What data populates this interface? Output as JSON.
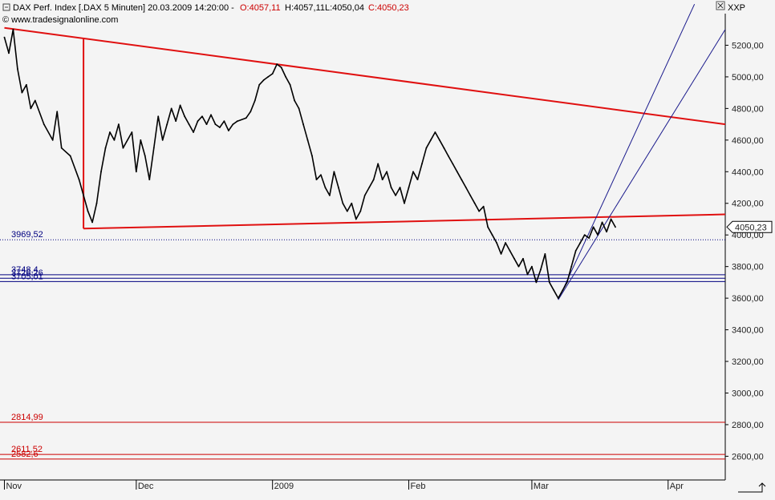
{
  "header": {
    "instrument": "DAX Perf. Index [.DAX  5 Minuten] 20.03.2009 14:20:00 - ",
    "open": "O:4057,11",
    "high": "H:4057,11",
    "low": "L:4050,04",
    "close": "C:4050,23",
    "copyright": "© www.tradesignalonline.com",
    "panel_label": "XXP"
  },
  "colors": {
    "background": "#f4f4f4",
    "price": "#000000",
    "trendline_red": "#e01010",
    "trendline_blue": "#1a1a8c",
    "level_red": "#cc0000",
    "level_blue": "#000080",
    "header_red": "#cc0000"
  },
  "chart_data": {
    "type": "line",
    "title": "DAX Perf. Index [.DAX  5 Minuten]",
    "ylim": [
      2450,
      5400
    ],
    "y_ticks": [
      {
        "value": 5200,
        "label": "5200,00"
      },
      {
        "value": 5000,
        "label": "5000,00"
      },
      {
        "value": 4800,
        "label": "4800,00"
      },
      {
        "value": 4600,
        "label": "4600,00"
      },
      {
        "value": 4400,
        "label": "4400,00"
      },
      {
        "value": 4200,
        "label": "4200,00"
      },
      {
        "value": 4000,
        "label": "4000,00"
      },
      {
        "value": 3800,
        "label": "3800,00"
      },
      {
        "value": 3600,
        "label": "3600,00"
      },
      {
        "value": 3400,
        "label": "3400,00"
      },
      {
        "value": 3200,
        "label": "3200,00"
      },
      {
        "value": 3000,
        "label": "3000,00"
      },
      {
        "value": 2800,
        "label": "2800,00"
      },
      {
        "value": 2600,
        "label": "2600,00"
      }
    ],
    "x_ticks": [
      {
        "date": "2008-11-01",
        "label": "Nov"
      },
      {
        "date": "2008-12-01",
        "label": "Dec"
      },
      {
        "date": "2009-01-01",
        "label": "2009"
      },
      {
        "date": "2009-02-01",
        "label": "Feb"
      },
      {
        "date": "2009-03-01",
        "label": "Mar"
      },
      {
        "date": "2009-04-01",
        "label": "Apr"
      }
    ],
    "xlim": [
      "2008-10-31",
      "2009-04-14"
    ],
    "last_price": {
      "value": 4050.23,
      "label": "4050,23"
    },
    "series": [
      {
        "points": [
          [
            "2008-11-01",
            5250
          ],
          [
            "2008-11-02",
            5150
          ],
          [
            "2008-11-03",
            5300
          ],
          [
            "2008-11-04",
            5050
          ],
          [
            "2008-11-05",
            4900
          ],
          [
            "2008-11-06",
            4950
          ],
          [
            "2008-11-07",
            4800
          ],
          [
            "2008-11-08",
            4850
          ],
          [
            "2008-11-10",
            4700
          ],
          [
            "2008-11-12",
            4600
          ],
          [
            "2008-11-13",
            4780
          ],
          [
            "2008-11-14",
            4550
          ],
          [
            "2008-11-16",
            4500
          ],
          [
            "2008-11-18",
            4350
          ],
          [
            "2008-11-19",
            4250
          ],
          [
            "2008-11-20",
            4150
          ],
          [
            "2008-11-21",
            4080
          ],
          [
            "2008-11-22",
            4200
          ],
          [
            "2008-11-23",
            4400
          ],
          [
            "2008-11-24",
            4550
          ],
          [
            "2008-11-25",
            4650
          ],
          [
            "2008-11-26",
            4600
          ],
          [
            "2008-11-27",
            4700
          ],
          [
            "2008-11-28",
            4550
          ],
          [
            "2008-11-30",
            4650
          ],
          [
            "2008-12-01",
            4400
          ],
          [
            "2008-12-02",
            4600
          ],
          [
            "2008-12-03",
            4500
          ],
          [
            "2008-12-04",
            4350
          ],
          [
            "2008-12-05",
            4550
          ],
          [
            "2008-12-06",
            4750
          ],
          [
            "2008-12-07",
            4600
          ],
          [
            "2008-12-08",
            4700
          ],
          [
            "2008-12-09",
            4800
          ],
          [
            "2008-12-10",
            4720
          ],
          [
            "2008-12-11",
            4820
          ],
          [
            "2008-12-12",
            4750
          ],
          [
            "2008-12-13",
            4700
          ],
          [
            "2008-12-14",
            4650
          ],
          [
            "2008-12-15",
            4720
          ],
          [
            "2008-12-16",
            4750
          ],
          [
            "2008-12-17",
            4700
          ],
          [
            "2008-12-18",
            4760
          ],
          [
            "2008-12-19",
            4700
          ],
          [
            "2008-12-20",
            4680
          ],
          [
            "2008-12-21",
            4720
          ],
          [
            "2008-12-22",
            4660
          ],
          [
            "2008-12-23",
            4700
          ],
          [
            "2008-12-24",
            4720
          ],
          [
            "2008-12-26",
            4740
          ],
          [
            "2008-12-27",
            4780
          ],
          [
            "2008-12-28",
            4850
          ],
          [
            "2008-12-29",
            4950
          ],
          [
            "2008-12-30",
            4980
          ],
          [
            "2008-12-31",
            5000
          ],
          [
            "2009-01-01",
            5020
          ],
          [
            "2009-01-02",
            5080
          ],
          [
            "2009-01-03",
            5060
          ],
          [
            "2009-01-04",
            5000
          ],
          [
            "2009-01-05",
            4950
          ],
          [
            "2009-01-06",
            4850
          ],
          [
            "2009-01-07",
            4800
          ],
          [
            "2009-01-08",
            4700
          ],
          [
            "2009-01-09",
            4600
          ],
          [
            "2009-01-10",
            4500
          ],
          [
            "2009-01-11",
            4350
          ],
          [
            "2009-01-12",
            4380
          ],
          [
            "2009-01-13",
            4300
          ],
          [
            "2009-01-14",
            4250
          ],
          [
            "2009-01-15",
            4400
          ],
          [
            "2009-01-16",
            4300
          ],
          [
            "2009-01-17",
            4200
          ],
          [
            "2009-01-18",
            4150
          ],
          [
            "2009-01-19",
            4200
          ],
          [
            "2009-01-20",
            4100
          ],
          [
            "2009-01-21",
            4150
          ],
          [
            "2009-01-22",
            4250
          ],
          [
            "2009-01-23",
            4300
          ],
          [
            "2009-01-24",
            4350
          ],
          [
            "2009-01-25",
            4450
          ],
          [
            "2009-01-26",
            4350
          ],
          [
            "2009-01-27",
            4400
          ],
          [
            "2009-01-28",
            4300
          ],
          [
            "2009-01-29",
            4250
          ],
          [
            "2009-01-30",
            4300
          ],
          [
            "2009-01-31",
            4200
          ],
          [
            "2009-02-01",
            4300
          ],
          [
            "2009-02-02",
            4400
          ],
          [
            "2009-02-03",
            4350
          ],
          [
            "2009-02-04",
            4450
          ],
          [
            "2009-02-05",
            4550
          ],
          [
            "2009-02-06",
            4600
          ],
          [
            "2009-02-07",
            4650
          ],
          [
            "2009-02-08",
            4600
          ],
          [
            "2009-02-09",
            4550
          ],
          [
            "2009-02-10",
            4500
          ],
          [
            "2009-02-11",
            4450
          ],
          [
            "2009-02-12",
            4400
          ],
          [
            "2009-02-13",
            4350
          ],
          [
            "2009-02-14",
            4300
          ],
          [
            "2009-02-15",
            4250
          ],
          [
            "2009-02-16",
            4200
          ],
          [
            "2009-02-17",
            4150
          ],
          [
            "2009-02-18",
            4180
          ],
          [
            "2009-02-19",
            4050
          ],
          [
            "2009-02-20",
            4000
          ],
          [
            "2009-02-21",
            3950
          ],
          [
            "2009-02-22",
            3880
          ],
          [
            "2009-02-23",
            3950
          ],
          [
            "2009-02-24",
            3900
          ],
          [
            "2009-02-25",
            3850
          ],
          [
            "2009-02-26",
            3800
          ],
          [
            "2009-02-27",
            3850
          ],
          [
            "2009-02-28",
            3750
          ],
          [
            "2009-03-01",
            3800
          ],
          [
            "2009-03-02",
            3700
          ],
          [
            "2009-03-03",
            3780
          ],
          [
            "2009-03-04",
            3880
          ],
          [
            "2009-03-05",
            3700
          ],
          [
            "2009-03-06",
            3650
          ],
          [
            "2009-03-07",
            3600
          ],
          [
            "2009-03-08",
            3650
          ],
          [
            "2009-03-09",
            3700
          ],
          [
            "2009-03-10",
            3800
          ],
          [
            "2009-03-11",
            3900
          ],
          [
            "2009-03-12",
            3950
          ],
          [
            "2009-03-13",
            4000
          ],
          [
            "2009-03-14",
            3980
          ],
          [
            "2009-03-15",
            4050
          ],
          [
            "2009-03-16",
            4000
          ],
          [
            "2009-03-17",
            4080
          ],
          [
            "2009-03-18",
            4020
          ],
          [
            "2009-03-19",
            4100
          ],
          [
            "2009-03-20",
            4050
          ]
        ]
      }
    ],
    "trendlines": [
      {
        "color": "red",
        "from": [
          "2008-11-01",
          5310
        ],
        "to": [
          "2009-04-14",
          4700
        ]
      },
      {
        "color": "red",
        "from": [
          "2008-11-19",
          4040
        ],
        "to": [
          "2009-04-14",
          4130
        ]
      },
      {
        "color": "red",
        "from": [
          "2008-11-19",
          5240
        ],
        "to": [
          "2008-11-19",
          4040
        ]
      },
      {
        "color": "blue",
        "from": [
          "2009-03-07",
          3590
        ],
        "to": [
          "2009-04-07",
          5460
        ]
      },
      {
        "color": "blue",
        "from": [
          "2009-03-07",
          3590
        ],
        "to": [
          "2009-04-14",
          5300
        ]
      }
    ],
    "levels": [
      {
        "value": 3969.52,
        "label": "3969,52",
        "color": "blue",
        "style": "dotted"
      },
      {
        "value": 3748.4,
        "label": "3748,4",
        "color": "blue",
        "style": "solid"
      },
      {
        "value": 3726.26,
        "label": "3726,26",
        "color": "blue",
        "style": "solid"
      },
      {
        "value": 3705.01,
        "label": "3705,01",
        "color": "blue",
        "style": "solid"
      },
      {
        "value": 2814.99,
        "label": "2814,99",
        "color": "red",
        "style": "solid"
      },
      {
        "value": 2611.52,
        "label": "2611,52",
        "color": "red",
        "style": "solid"
      },
      {
        "value": 2582.6,
        "label": "2582,6",
        "color": "red",
        "style": "solid"
      }
    ],
    "grid": false
  }
}
